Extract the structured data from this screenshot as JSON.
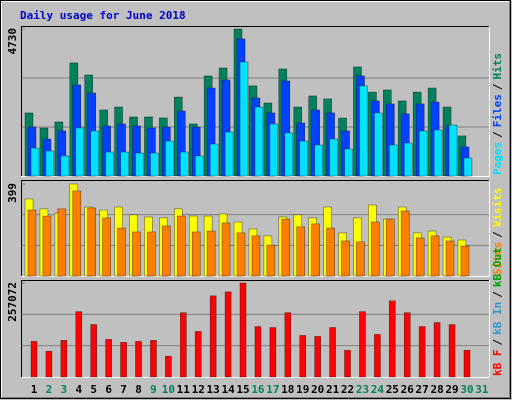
{
  "chart_data": [
    {
      "type": "bar",
      "title": "Daily usage for June 2018",
      "ylim": [
        0,
        4730
      ],
      "yticks": [
        4730
      ],
      "legend_separator": "/",
      "series": [
        {
          "name": "Hits",
          "color": "#00805c",
          "values": [
            2030,
            1545,
            1740,
            3640,
            3250,
            2125,
            2220,
            1900,
            1900,
            1870,
            2540,
            1675,
            3220,
            3475,
            4730,
            2900,
            2350,
            3445,
            2220,
            2575,
            2480,
            1865,
            3510,
            2700,
            2770,
            2415,
            2700,
            2830,
            2220,
            1290,
            null
          ]
        },
        {
          "name": "Files",
          "color": "#0040ff",
          "values": [
            1575,
            1190,
            1450,
            2930,
            2670,
            1610,
            1675,
            1610,
            1545,
            1575,
            2090,
            1575,
            2830,
            3090,
            4410,
            2510,
            2030,
            3060,
            1705,
            2125,
            2030,
            1450,
            3220,
            2415,
            2320,
            2000,
            2320,
            2380,
            1610,
            935,
            null
          ]
        },
        {
          "name": "Pages",
          "color": "#00e0ff",
          "values": [
            900,
            805,
            645,
            1545,
            1450,
            770,
            770,
            740,
            740,
            1125,
            770,
            645,
            1030,
            1415,
            3670,
            2220,
            1675,
            1385,
            1125,
            1000,
            1190,
            870,
            2900,
            2030,
            1000,
            1060,
            1450,
            1480,
            1640,
            580,
            null
          ]
        }
      ]
    },
    {
      "type": "bar",
      "ylim": [
        0,
        399
      ],
      "yticks": [
        399
      ],
      "legend_separator": "/",
      "series": [
        {
          "name": "Visits",
          "color": "#ffff00",
          "values": [
            334,
            291,
            273,
            399,
            299,
            286,
            299,
            265,
            256,
            252,
            291,
            260,
            260,
            269,
            234,
            204,
            174,
            256,
            265,
            252,
            299,
            187,
            252,
            308,
            247,
            299,
            187,
            195,
            169,
            156,
            null
          ]
        },
        {
          "name": "Sites",
          "color": "#ff8000",
          "values": [
            286,
            260,
            291,
            369,
            295,
            252,
            208,
            191,
            191,
            217,
            260,
            191,
            195,
            230,
            187,
            174,
            134,
            247,
            213,
            226,
            208,
            152,
            148,
            234,
            247,
            282,
            165,
            174,
            152,
            130,
            null
          ]
        }
      ]
    },
    {
      "type": "bar",
      "ylim": [
        0,
        257072
      ],
      "yticks": [
        257072
      ],
      "legend_separator": "/",
      "series": [
        {
          "name": "kB F",
          "color": "#ff0000",
          "values": [
            97400,
            70400,
            100100,
            178600,
            143400,
            102800,
            94700,
            97400,
            100100,
            56800,
            175900,
            124500,
            221900,
            232700,
            257072,
            138000,
            135300,
            175900,
            113600,
            111000,
            135300,
            73100,
            178600,
            116400,
            208400,
            175900,
            138000,
            148800,
            143400,
            73100,
            null
          ]
        }
      ],
      "legend_only": [
        {
          "name": "kB In",
          "color": "#3399cc"
        },
        {
          "name": "kB Out",
          "color": "#00a000"
        }
      ],
      "categories": [
        "1",
        "2",
        "3",
        "4",
        "5",
        "6",
        "7",
        "8",
        "9",
        "10",
        "11",
        "12",
        "13",
        "14",
        "15",
        "16",
        "17",
        "18",
        "19",
        "20",
        "21",
        "22",
        "23",
        "24",
        "25",
        "26",
        "27",
        "28",
        "29",
        "30",
        "31"
      ],
      "category_colors": [
        "#000000",
        "#00805c",
        "#00805c",
        "#000000",
        "#000000",
        "#000000",
        "#000000",
        "#000000",
        "#00805c",
        "#00805c",
        "#000000",
        "#000000",
        "#000000",
        "#000000",
        "#000000",
        "#00805c",
        "#00805c",
        "#000000",
        "#000000",
        "#000000",
        "#000000",
        "#000000",
        "#00805c",
        "#00805c",
        "#000000",
        "#000000",
        "#000000",
        "#000000",
        "#000000",
        "#00805c",
        "#00805c"
      ]
    }
  ]
}
